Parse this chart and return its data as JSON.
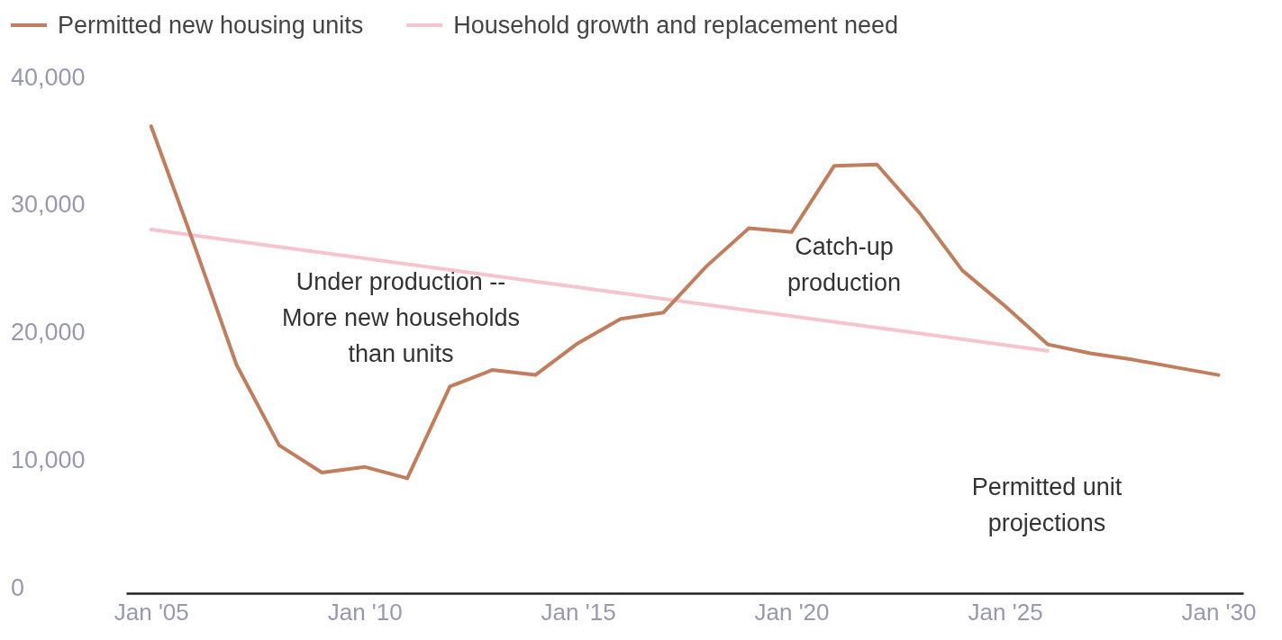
{
  "chart_data": {
    "type": "line",
    "x": [
      "2005-01",
      "2006-01",
      "2007-01",
      "2008-01",
      "2009-01",
      "2010-01",
      "2011-01",
      "2012-01",
      "2013-01",
      "2014-01",
      "2015-01",
      "2016-01",
      "2017-01",
      "2018-01",
      "2019-01",
      "2020-01",
      "2021-01",
      "2022-01",
      "2023-01",
      "2024-01",
      "2025-01",
      "2026-01",
      "2027-01",
      "2028-01",
      "2029-01",
      "2030-01"
    ],
    "series": [
      {
        "name": "Permitted new housing units",
        "color": "#c27d5c",
        "values": [
          36600,
          27400,
          17900,
          11600,
          9450,
          9900,
          9000,
          16200,
          17500,
          17100,
          19600,
          21500,
          22000,
          25600,
          28600,
          28300,
          33500,
          33600,
          29800,
          25300,
          22500,
          19500,
          18800,
          18300,
          17700,
          17100
        ]
      },
      {
        "name": "Household growth and replacement need",
        "color": "#f6c4cc",
        "x": [
          "2005-01",
          "2026-01"
        ],
        "values": [
          28500,
          19000
        ]
      }
    ],
    "xlim": [
      "2004-06",
      "2030-08"
    ],
    "xticks": [
      {
        "value": "2005-01",
        "label": "Jan '05"
      },
      {
        "value": "2010-01",
        "label": "Jan '10"
      },
      {
        "value": "2015-01",
        "label": "Jan '15"
      },
      {
        "value": "2020-01",
        "label": "Jan '20"
      },
      {
        "value": "2025-01",
        "label": "Jan '25"
      },
      {
        "value": "2030-01",
        "label": "Jan '30"
      }
    ],
    "ylim": [
      0,
      40000
    ],
    "yticks": [
      {
        "value": 0,
        "label": "0"
      },
      {
        "value": 10000,
        "label": "10,000"
      },
      {
        "value": 20000,
        "label": "20,000"
      },
      {
        "value": 30000,
        "label": "30,000"
      },
      {
        "value": 40000,
        "label": "40,000"
      }
    ],
    "annotations": [
      "Under production -- More new households than units",
      "Catch-up production",
      "Permitted unit projections"
    ],
    "grid": false,
    "legend": "top left",
    "marker": "none",
    "line_style": "solid"
  }
}
